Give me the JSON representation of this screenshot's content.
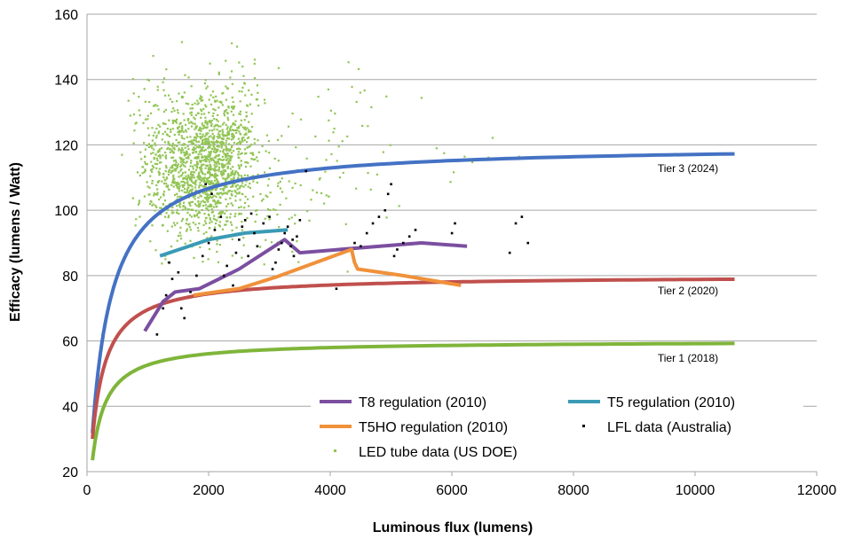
{
  "chart_data": {
    "type": "line",
    "xlabel": "Luminous flux (lumens)",
    "ylabel": "Efficacy (lumens / Watt)",
    "xlim": [
      0,
      12000
    ],
    "ylim": [
      20,
      160
    ],
    "x_ticks": [
      "0",
      "2000",
      "4000",
      "6000",
      "8000",
      "10000",
      "12000"
    ],
    "y_ticks": [
      "20",
      "40",
      "60",
      "80",
      "100",
      "120",
      "140",
      "160"
    ],
    "grid": "horizontal",
    "legend_position": "bottom-right",
    "tier_labels": [
      "Tier 3 (2024)",
      "Tier 2 (2020)",
      "Tier 1 (2018)"
    ],
    "series": [
      {
        "name": "T8 regulation (2010)",
        "kind": "line",
        "color": "#7b4fa0",
        "x": [
          950,
          1250,
          1450,
          1850,
          2500,
          3250,
          3500,
          4500,
          5500,
          6250
        ],
        "y": [
          63,
          72,
          75,
          76,
          82,
          91,
          87,
          88.5,
          90,
          89
        ]
      },
      {
        "name": "T5 regulation (2010)",
        "kind": "line",
        "color": "#3a9bb5",
        "x": [
          1200,
          1600,
          2000,
          2600,
          3300
        ],
        "y": [
          86,
          88.5,
          91,
          93,
          94
        ]
      },
      {
        "name": "T5HO regulation (2010)",
        "kind": "line",
        "color": "#f0913a",
        "x": [
          1750,
          2500,
          3100,
          4350,
          4400,
          4450,
          5200,
          6150
        ],
        "y": [
          74,
          76,
          79.5,
          88,
          84,
          82,
          80,
          77
        ]
      },
      {
        "name": "LFL data (Australia)",
        "kind": "scatter",
        "color": "#000000",
        "points": [
          [
            1300,
            74
          ],
          [
            1400,
            79
          ],
          [
            1500,
            81
          ],
          [
            1550,
            70
          ],
          [
            1600,
            67
          ],
          [
            1700,
            75
          ],
          [
            1800,
            80
          ],
          [
            1900,
            86
          ],
          [
            2000,
            90
          ],
          [
            2100,
            94
          ],
          [
            2200,
            98
          ],
          [
            2300,
            83
          ],
          [
            2400,
            77
          ],
          [
            2450,
            87
          ],
          [
            2500,
            91
          ],
          [
            2550,
            95
          ],
          [
            2600,
            97
          ],
          [
            2700,
            99
          ],
          [
            2800,
            89
          ],
          [
            2900,
            96
          ],
          [
            3000,
            98
          ],
          [
            3100,
            84
          ],
          [
            3150,
            88
          ],
          [
            3200,
            90
          ],
          [
            3250,
            93
          ],
          [
            3300,
            95
          ],
          [
            3350,
            89
          ],
          [
            3400,
            86
          ],
          [
            3450,
            92
          ],
          [
            3500,
            97
          ],
          [
            3600,
            112
          ],
          [
            4100,
            76
          ],
          [
            4400,
            90
          ],
          [
            4500,
            89
          ],
          [
            4700,
            96
          ],
          [
            4800,
            98
          ],
          [
            4900,
            100
          ],
          [
            4950,
            105
          ],
          [
            5000,
            108
          ],
          [
            5100,
            88
          ],
          [
            5200,
            90
          ],
          [
            5300,
            92
          ],
          [
            5400,
            94
          ],
          [
            6000,
            93
          ],
          [
            6050,
            96
          ],
          [
            6950,
            87
          ],
          [
            7050,
            96
          ],
          [
            7150,
            98
          ],
          [
            7250,
            90
          ],
          [
            1350,
            84
          ],
          [
            1250,
            70
          ],
          [
            2250,
            80
          ],
          [
            2650,
            86
          ],
          [
            3050,
            82
          ],
          [
            3380,
            91
          ],
          [
            4600,
            93
          ],
          [
            5050,
            86
          ],
          [
            2750,
            93
          ],
          [
            1950,
            108
          ],
          [
            2050,
            105
          ],
          [
            1150,
            62
          ]
        ]
      },
      {
        "name": "LED tube data (US DOE)",
        "kind": "scatter",
        "color": "#92c556",
        "clusters": [
          {
            "cx": 1350,
            "cy": 115,
            "sx": 300,
            "sy": 12,
            "n": 450
          },
          {
            "cx": 2000,
            "cy": 113,
            "sx": 280,
            "sy": 10,
            "n": 750
          },
          {
            "cx": 2400,
            "cy": 118,
            "sx": 260,
            "sy": 12,
            "n": 350
          },
          {
            "cx": 3100,
            "cy": 108,
            "sx": 700,
            "sy": 12,
            "n": 110
          },
          {
            "cx": 4300,
            "cy": 120,
            "sx": 700,
            "sy": 12,
            "n": 35
          },
          {
            "cx": 6400,
            "cy": 112,
            "sx": 600,
            "sy": 6,
            "n": 8
          }
        ]
      },
      {
        "name": "Tier 3 (2024)",
        "kind": "curve",
        "color": "#4472c4",
        "formula": "E = 120*F/(F+250)",
        "x_range": [
          90,
          10650
        ]
      },
      {
        "name": "Tier 2 (2020)",
        "kind": "curve",
        "color": "#c0504d",
        "formula": "E = 80*F/(F+150)",
        "x_range": [
          90,
          10650
        ]
      },
      {
        "name": "Tier 1 (2018)",
        "kind": "curve",
        "color": "#7fb53a",
        "formula": "E = 60*F/(F+140)",
        "x_range": [
          90,
          10650
        ]
      }
    ]
  }
}
